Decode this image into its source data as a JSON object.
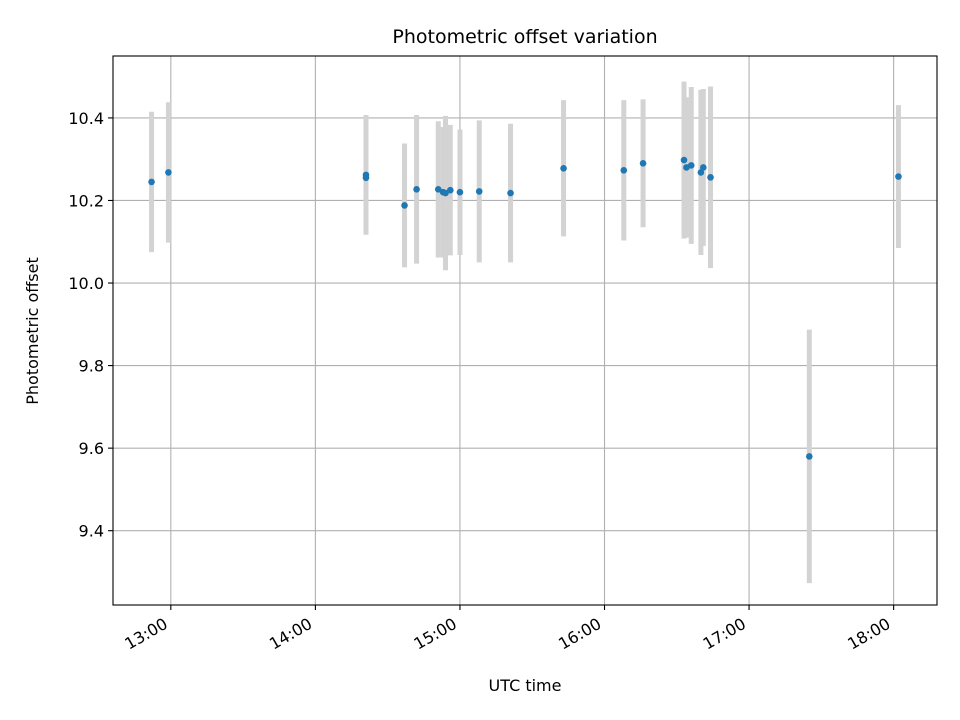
{
  "chart_data": {
    "type": "scatter",
    "title": "Photometric offset variation",
    "xlabel": "UTC time",
    "ylabel": "Photometric offset",
    "xlim": [
      "12:36",
      "18:18"
    ],
    "ylim": [
      9.22,
      10.55
    ],
    "x_ticks": [
      "13:00",
      "14:00",
      "15:00",
      "16:00",
      "17:00",
      "18:00"
    ],
    "y_ticks": [
      9.4,
      9.6,
      9.8,
      10.0,
      10.2,
      10.4
    ],
    "y_tick_labels": [
      "9.4",
      "9.6",
      "9.8",
      "10.0",
      "10.2",
      "10.4"
    ],
    "grid": true,
    "colors": {
      "points": "#1f77b4",
      "error_bars": "#d3d3d3"
    },
    "points": [
      {
        "time": "12:52",
        "y": 10.245,
        "err": 0.17
      },
      {
        "time": "12:59",
        "y": 10.268,
        "err": 0.17
      },
      {
        "time": "14:21",
        "y": 10.255,
        "err": 0.135
      },
      {
        "time": "14:21",
        "y": 10.262,
        "err": 0.145
      },
      {
        "time": "14:37",
        "y": 10.188,
        "err": 0.15
      },
      {
        "time": "14:42",
        "y": 10.227,
        "err": 0.18
      },
      {
        "time": "14:51",
        "y": 10.227,
        "err": 0.165
      },
      {
        "time": "14:53",
        "y": 10.22,
        "err": 0.158
      },
      {
        "time": "14:54",
        "y": 10.218,
        "err": 0.187
      },
      {
        "time": "14:56",
        "y": 10.225,
        "err": 0.158
      },
      {
        "time": "15:00",
        "y": 10.22,
        "err": 0.152
      },
      {
        "time": "15:08",
        "y": 10.222,
        "err": 0.172
      },
      {
        "time": "15:21",
        "y": 10.218,
        "err": 0.168
      },
      {
        "time": "15:43",
        "y": 10.278,
        "err": 0.165
      },
      {
        "time": "16:08",
        "y": 10.273,
        "err": 0.17
      },
      {
        "time": "16:16",
        "y": 10.29,
        "err": 0.155
      },
      {
        "time": "16:33",
        "y": 10.298,
        "err": 0.19
      },
      {
        "time": "16:34",
        "y": 10.28,
        "err": 0.17
      },
      {
        "time": "16:36",
        "y": 10.285,
        "err": 0.19
      },
      {
        "time": "16:40",
        "y": 10.268,
        "err": 0.2
      },
      {
        "time": "16:41",
        "y": 10.28,
        "err": 0.19
      },
      {
        "time": "16:44",
        "y": 10.256,
        "err": 0.22
      },
      {
        "time": "17:25",
        "y": 9.58,
        "err": 0.307
      },
      {
        "time": "18:02",
        "y": 10.258,
        "err": 0.173
      }
    ]
  }
}
